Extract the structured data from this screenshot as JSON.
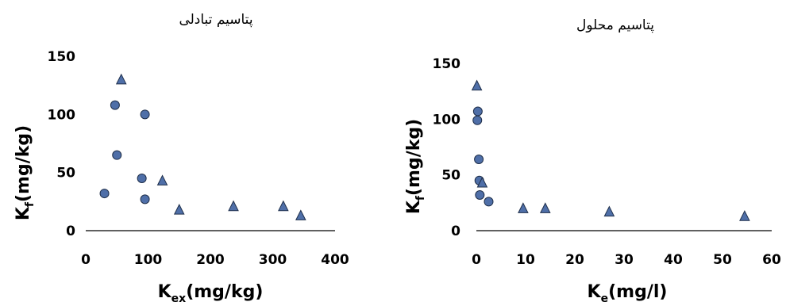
{
  "chart_data": [
    {
      "type": "scatter",
      "title": "پتاسیم تبادلی",
      "xlabel": "K",
      "xlabel_sub": "ex",
      "xlabel_unit": "(mg/kg)",
      "ylabel": "K",
      "ylabel_sub": "f",
      "ylabel_unit": "(mg/kg)",
      "xlim": [
        0,
        400
      ],
      "ylim": [
        0,
        150
      ],
      "xticks": [
        "0",
        "100",
        "200",
        "300",
        "400"
      ],
      "yticks": [
        "0",
        "50",
        "100",
        "150"
      ],
      "grid": false,
      "series": [
        {
          "marker": "circle",
          "color": "#4f6fa8",
          "x": [
            30,
            47,
            50,
            90,
            95,
            95
          ],
          "y": [
            32,
            108,
            65,
            45,
            27,
            100
          ]
        },
        {
          "marker": "triangle",
          "color": "#4f6fa8",
          "x": [
            57,
            123,
            150,
            237,
            317,
            345
          ],
          "y": [
            130,
            43,
            18,
            21,
            21,
            13
          ]
        }
      ]
    },
    {
      "type": "scatter",
      "title": "پتاسیم محلول",
      "xlabel": "K",
      "xlabel_sub": "e",
      "xlabel_unit": "(mg/l)",
      "ylabel": "K",
      "ylabel_sub": "f",
      "ylabel_unit": "(mg/kg)",
      "xlim": [
        0,
        60
      ],
      "ylim": [
        0,
        150
      ],
      "xticks": [
        "0",
        "10",
        "20",
        "30",
        "40",
        "50",
        "60"
      ],
      "yticks": [
        "0",
        "50",
        "100",
        "150"
      ],
      "grid": false,
      "series": [
        {
          "marker": "circle",
          "color": "#4f6fa8",
          "x": [
            0.2,
            0.3,
            0.5,
            0.6,
            0.7,
            2.5
          ],
          "y": [
            99,
            107,
            64,
            45,
            32,
            26
          ]
        },
        {
          "marker": "triangle",
          "color": "#4f6fa8",
          "x": [
            0.1,
            1.2,
            9.5,
            14,
            27,
            54.5
          ],
          "y": [
            130,
            43,
            20,
            20,
            17,
            13
          ]
        }
      ]
    }
  ]
}
